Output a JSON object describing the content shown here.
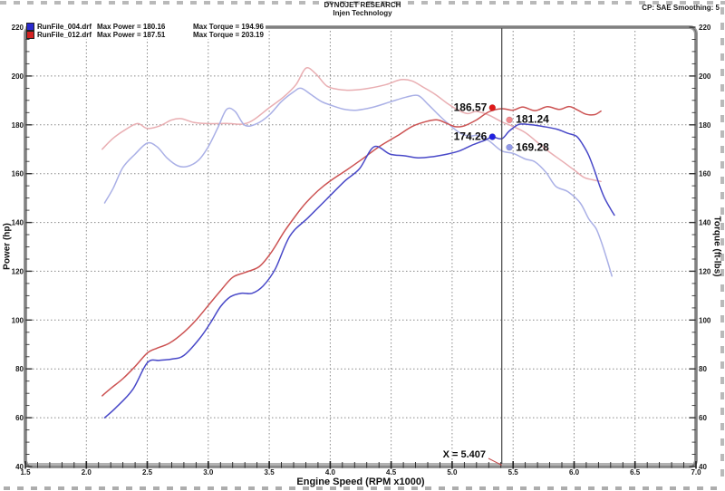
{
  "header": {
    "title": "DYNOJET RESEARCH",
    "subtitle": "Injen Technology",
    "right": "CP: SAE  Smoothing: 5"
  },
  "legend": [
    {
      "file": "RunFile_004.drf",
      "max_power_label": "Max Power = 180.16",
      "max_torque_label": "Max Torque = 194.96",
      "color": "#2a2ad0"
    },
    {
      "file": "RunFile_012.drf",
      "max_power_label": "Max Power = 187.51",
      "max_torque_label": "Max Torque = 203.19",
      "color": "#d42222"
    }
  ],
  "chart_data": {
    "type": "line",
    "xlabel": "Engine Speed (RPM x1000)",
    "ylabel_left": "Power (hp)",
    "ylabel_right": "Torque (ft-lbs)",
    "xlim": [
      1.5,
      7.0
    ],
    "ylim": [
      40,
      220
    ],
    "x_ticks": [
      1.5,
      2.0,
      2.5,
      3.0,
      3.5,
      4.0,
      4.5,
      5.0,
      5.5,
      6.0,
      6.5,
      7.0
    ],
    "y_ticks": [
      40,
      60,
      80,
      100,
      120,
      140,
      160,
      180,
      200,
      220
    ],
    "x_minor_step": 0.1,
    "y_minor_step": 5,
    "grid": true,
    "legend_position": "top-left",
    "grid_color": "#8a8a8a",
    "cursor": {
      "x": 5.407,
      "label": "X = 5.407",
      "line_color": "#444444",
      "pointer_color": "#c44848",
      "readouts": [
        {
          "label": "186.57",
          "rpm": 5.33,
          "value": 187.0,
          "color": "#e01818",
          "side": "left"
        },
        {
          "label": "181.24",
          "rpm": 5.47,
          "value": 182.0,
          "color": "#f2888c",
          "side": "right"
        },
        {
          "label": "174.26",
          "rpm": 5.33,
          "value": 175.1,
          "color": "#2020e0",
          "side": "left"
        },
        {
          "label": "169.28",
          "rpm": 5.47,
          "value": 170.8,
          "color": "#9098e8",
          "side": "right"
        }
      ]
    },
    "series": [
      {
        "name": "run012_torque",
        "run": "RunFile_012.drf",
        "quantity": "torque_ftlbs",
        "color": "#e9aeb2",
        "points": [
          [
            2.13,
            170
          ],
          [
            2.22,
            174.5
          ],
          [
            2.32,
            178
          ],
          [
            2.42,
            180.5
          ],
          [
            2.5,
            178.5
          ],
          [
            2.6,
            179.5
          ],
          [
            2.7,
            182
          ],
          [
            2.78,
            182.5
          ],
          [
            2.88,
            181
          ],
          [
            3.0,
            180.5
          ],
          [
            3.15,
            180.6
          ],
          [
            3.28,
            180.3
          ],
          [
            3.37,
            182
          ],
          [
            3.5,
            187
          ],
          [
            3.62,
            191.5
          ],
          [
            3.72,
            196.5
          ],
          [
            3.8,
            203.2
          ],
          [
            3.88,
            201
          ],
          [
            3.97,
            196
          ],
          [
            4.07,
            194.5
          ],
          [
            4.18,
            194.2
          ],
          [
            4.32,
            195
          ],
          [
            4.46,
            196.5
          ],
          [
            4.58,
            198.5
          ],
          [
            4.67,
            198
          ],
          [
            4.76,
            195.5
          ],
          [
            4.86,
            192.5
          ],
          [
            4.96,
            188.8
          ],
          [
            5.05,
            186
          ],
          [
            5.13,
            184.6
          ],
          [
            5.2,
            185.5
          ],
          [
            5.3,
            184
          ],
          [
            5.407,
            181.2
          ],
          [
            5.5,
            179.3
          ],
          [
            5.6,
            176.8
          ],
          [
            5.7,
            172.8
          ],
          [
            5.8,
            168.8
          ],
          [
            5.9,
            165.2
          ],
          [
            6.0,
            161.5
          ],
          [
            6.08,
            158.5
          ],
          [
            6.15,
            157.5
          ],
          [
            6.22,
            156.8
          ]
        ]
      },
      {
        "name": "run004_torque",
        "run": "RunFile_004.drf",
        "quantity": "torque_ftlbs",
        "color": "#aab0e6",
        "points": [
          [
            2.15,
            148
          ],
          [
            2.22,
            154
          ],
          [
            2.3,
            162.5
          ],
          [
            2.4,
            168
          ],
          [
            2.5,
            172.5
          ],
          [
            2.58,
            171
          ],
          [
            2.66,
            166.5
          ],
          [
            2.75,
            163.2
          ],
          [
            2.83,
            163
          ],
          [
            2.92,
            165.5
          ],
          [
            3.0,
            171
          ],
          [
            3.08,
            179
          ],
          [
            3.15,
            186.3
          ],
          [
            3.22,
            185.5
          ],
          [
            3.3,
            179.8
          ],
          [
            3.4,
            180.5
          ],
          [
            3.5,
            184
          ],
          [
            3.6,
            189.5
          ],
          [
            3.7,
            193.5
          ],
          [
            3.76,
            195
          ],
          [
            3.84,
            192.5
          ],
          [
            3.93,
            189.5
          ],
          [
            4.02,
            187.8
          ],
          [
            4.12,
            186.3
          ],
          [
            4.22,
            186
          ],
          [
            4.35,
            187.2
          ],
          [
            4.5,
            189.5
          ],
          [
            4.62,
            191.3
          ],
          [
            4.72,
            192
          ],
          [
            4.8,
            188.5
          ],
          [
            4.88,
            184.5
          ],
          [
            4.96,
            180.8
          ],
          [
            5.06,
            176.8
          ],
          [
            5.14,
            175.4
          ],
          [
            5.21,
            175.6
          ],
          [
            5.3,
            173.5
          ],
          [
            5.407,
            169.3
          ],
          [
            5.5,
            168.3
          ],
          [
            5.6,
            166
          ],
          [
            5.68,
            164.8
          ],
          [
            5.77,
            160.5
          ],
          [
            5.85,
            154.8
          ],
          [
            5.95,
            152.6
          ],
          [
            6.05,
            148
          ],
          [
            6.12,
            141.5
          ],
          [
            6.18,
            137.5
          ],
          [
            6.22,
            132.5
          ],
          [
            6.27,
            124.8
          ],
          [
            6.31,
            118
          ]
        ]
      },
      {
        "name": "run012_power",
        "run": "RunFile_012.drf",
        "quantity": "power_hp",
        "color": "#cc5252",
        "points": [
          [
            2.13,
            69
          ],
          [
            2.2,
            72
          ],
          [
            2.3,
            76
          ],
          [
            2.4,
            81
          ],
          [
            2.5,
            86.5
          ],
          [
            2.58,
            88.5
          ],
          [
            2.68,
            90.5
          ],
          [
            2.8,
            95
          ],
          [
            2.9,
            100
          ],
          [
            3.0,
            106
          ],
          [
            3.1,
            112
          ],
          [
            3.2,
            117.5
          ],
          [
            3.3,
            119.5
          ],
          [
            3.42,
            122
          ],
          [
            3.52,
            128
          ],
          [
            3.62,
            136
          ],
          [
            3.72,
            143
          ],
          [
            3.8,
            148
          ],
          [
            3.9,
            153
          ],
          [
            4.0,
            157
          ],
          [
            4.12,
            161
          ],
          [
            4.25,
            165.5
          ],
          [
            4.4,
            171
          ],
          [
            4.55,
            175.5
          ],
          [
            4.68,
            179.5
          ],
          [
            4.8,
            181.5
          ],
          [
            4.88,
            182
          ],
          [
            4.96,
            180.5
          ],
          [
            5.03,
            179.2
          ],
          [
            5.1,
            179.6
          ],
          [
            5.2,
            182
          ],
          [
            5.3,
            185.3
          ],
          [
            5.407,
            186.6
          ],
          [
            5.5,
            186
          ],
          [
            5.58,
            187.3
          ],
          [
            5.68,
            185.8
          ],
          [
            5.78,
            187.4
          ],
          [
            5.88,
            186.3
          ],
          [
            5.96,
            187.5
          ],
          [
            6.03,
            186
          ],
          [
            6.1,
            184.3
          ],
          [
            6.17,
            184.2
          ],
          [
            6.22,
            185.6
          ]
        ]
      },
      {
        "name": "run004_power",
        "run": "RunFile_004.drf",
        "quantity": "power_hp",
        "color": "#4848c8",
        "points": [
          [
            2.15,
            60
          ],
          [
            2.24,
            64
          ],
          [
            2.38,
            71.5
          ],
          [
            2.5,
            82.5
          ],
          [
            2.6,
            83.5
          ],
          [
            2.7,
            84
          ],
          [
            2.8,
            85.5
          ],
          [
            2.93,
            92.5
          ],
          [
            3.02,
            99
          ],
          [
            3.1,
            105.5
          ],
          [
            3.18,
            109.5
          ],
          [
            3.27,
            111
          ],
          [
            3.36,
            111
          ],
          [
            3.45,
            114
          ],
          [
            3.55,
            121
          ],
          [
            3.67,
            134.5
          ],
          [
            3.82,
            142
          ],
          [
            3.97,
            149.5
          ],
          [
            4.12,
            157
          ],
          [
            4.24,
            162
          ],
          [
            4.36,
            171
          ],
          [
            4.49,
            168
          ],
          [
            4.61,
            167.3
          ],
          [
            4.72,
            166.5
          ],
          [
            4.82,
            166.8
          ],
          [
            4.96,
            168
          ],
          [
            5.06,
            169.3
          ],
          [
            5.16,
            171.6
          ],
          [
            5.26,
            173.5
          ],
          [
            5.33,
            175
          ],
          [
            5.407,
            174.3
          ],
          [
            5.47,
            177.5
          ],
          [
            5.55,
            180.2
          ],
          [
            5.65,
            180
          ],
          [
            5.75,
            179.3
          ],
          [
            5.86,
            178.2
          ],
          [
            5.95,
            176.5
          ],
          [
            6.02,
            175.3
          ],
          [
            6.07,
            172
          ],
          [
            6.12,
            167.5
          ],
          [
            6.17,
            161
          ],
          [
            6.21,
            155
          ],
          [
            6.25,
            150
          ],
          [
            6.3,
            145.5
          ],
          [
            6.33,
            143
          ]
        ]
      }
    ]
  }
}
